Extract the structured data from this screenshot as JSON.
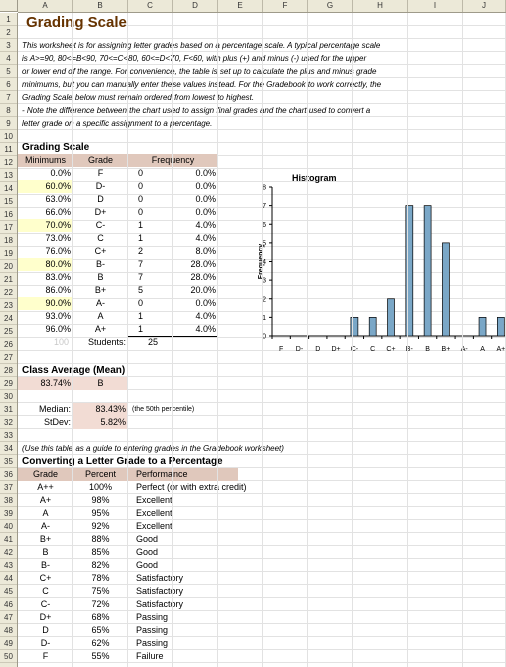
{
  "columns": [
    "A",
    "B",
    "C",
    "D",
    "E",
    "F",
    "G",
    "H",
    "I",
    "J"
  ],
  "rows": [
    1,
    2,
    3,
    4,
    5,
    6,
    7,
    8,
    9,
    10,
    11,
    12,
    13,
    14,
    15,
    16,
    17,
    18,
    19,
    20,
    21,
    22,
    23,
    24,
    25,
    26,
    27,
    28,
    29,
    30,
    31,
    32,
    33,
    34,
    35,
    36,
    37,
    38,
    39,
    40,
    41,
    42,
    43,
    44,
    45,
    46,
    47,
    48,
    49,
    50
  ],
  "title": "Grading Scale",
  "intro": [
    "This worksheet is for assigning letter grades based on a percentage scale. A typical percentage scale",
    "is A>=90, 80<=B<90, 70<=C<80, 60<=D<70, F<60, with plus (+) and minus (-) used for the upper",
    "or lower end of the range. For convenience, the table is set up to calculate the plus and minus grade",
    "minimums, but you can manually enter these values instead. For the Gradebook to work correctly, the",
    "Grading Scale below must remain ordered from lowest to highest.",
    " - Note the difference between the chart used to assign final grades and the chart used to convert a",
    "letter grade on a specific assignment to a percentage."
  ],
  "grading_scale": {
    "heading": "Grading Scale",
    "headers": {
      "minimums": "Minimums",
      "grade": "Grade",
      "frequency": "Frequency"
    },
    "rows": [
      {
        "min": "0.0%",
        "grade": "F",
        "count": "0",
        "pct": "0.0%",
        "highlight": false
      },
      {
        "min": "60.0%",
        "grade": "D-",
        "count": "0",
        "pct": "0.0%",
        "highlight": true
      },
      {
        "min": "63.0%",
        "grade": "D",
        "count": "0",
        "pct": "0.0%",
        "highlight": false
      },
      {
        "min": "66.0%",
        "grade": "D+",
        "count": "0",
        "pct": "0.0%",
        "highlight": false
      },
      {
        "min": "70.0%",
        "grade": "C-",
        "count": "1",
        "pct": "4.0%",
        "highlight": true
      },
      {
        "min": "73.0%",
        "grade": "C",
        "count": "1",
        "pct": "4.0%",
        "highlight": false
      },
      {
        "min": "76.0%",
        "grade": "C+",
        "count": "2",
        "pct": "8.0%",
        "highlight": false
      },
      {
        "min": "80.0%",
        "grade": "B-",
        "count": "7",
        "pct": "28.0%",
        "highlight": true
      },
      {
        "min": "83.0%",
        "grade": "B",
        "count": "7",
        "pct": "28.0%",
        "highlight": false
      },
      {
        "min": "86.0%",
        "grade": "B+",
        "count": "5",
        "pct": "20.0%",
        "highlight": false
      },
      {
        "min": "90.0%",
        "grade": "A-",
        "count": "0",
        "pct": "0.0%",
        "highlight": true
      },
      {
        "min": "93.0%",
        "grade": "A",
        "count": "1",
        "pct": "4.0%",
        "highlight": false
      },
      {
        "min": "96.0%",
        "grade": "A+",
        "count": "1",
        "pct": "4.0%",
        "highlight": false
      }
    ],
    "faded_value": "100",
    "students_label": "Students:",
    "students_count": "25"
  },
  "chart_data": {
    "type": "bar",
    "title": "Histogram",
    "xlabel": "",
    "ylabel": "Frequency",
    "categories": [
      "F",
      "D-",
      "D",
      "D+",
      "C-",
      "C",
      "C+",
      "B-",
      "B",
      "B+",
      "A-",
      "A",
      "A+"
    ],
    "values": [
      0,
      0,
      0,
      0,
      1,
      1,
      2,
      7,
      7,
      5,
      0,
      1,
      1
    ],
    "ylim": [
      0,
      8
    ],
    "yticks": [
      0,
      1,
      2,
      3,
      4,
      5,
      6,
      7,
      8
    ],
    "bar_color": "#7aa7c7",
    "grid": false,
    "legend": false
  },
  "class_average": {
    "heading": "Class Average (Mean)",
    "value": "83.74%",
    "grade": "B",
    "median_label": "Median:",
    "median_value": "83.43%",
    "median_note": "(the 50th percentile)",
    "stdev_label": "StDev:",
    "stdev_value": "5.82%"
  },
  "note": "(Use this table as a guide to entering grades in the Gradebook worksheet)",
  "conversion": {
    "heading": "Converting a Letter Grade to a Percentage",
    "headers": {
      "grade": "Grade",
      "percent": "Percent",
      "performance": "Performance"
    },
    "rows": [
      {
        "grade": "A++",
        "percent": "100%",
        "performance": "Perfect (or with extra credit)"
      },
      {
        "grade": "A+",
        "percent": "98%",
        "performance": "Excellent"
      },
      {
        "grade": "A",
        "percent": "95%",
        "performance": "Excellent"
      },
      {
        "grade": "A-",
        "percent": "92%",
        "performance": "Excellent"
      },
      {
        "grade": "B+",
        "percent": "88%",
        "performance": "Good"
      },
      {
        "grade": "B",
        "percent": "85%",
        "performance": "Good"
      },
      {
        "grade": "B-",
        "percent": "82%",
        "performance": "Good"
      },
      {
        "grade": "C+",
        "percent": "78%",
        "performance": "Satisfactory"
      },
      {
        "grade": "C",
        "percent": "75%",
        "performance": "Satisfactory"
      },
      {
        "grade": "C-",
        "percent": "72%",
        "performance": "Satisfactory"
      },
      {
        "grade": "D+",
        "percent": "68%",
        "performance": "Passing"
      },
      {
        "grade": "D",
        "percent": "65%",
        "performance": "Passing"
      },
      {
        "grade": "D-",
        "percent": "62%",
        "performance": "Passing"
      },
      {
        "grade": "F",
        "percent": "55%",
        "performance": "Failure"
      }
    ]
  },
  "colors": {
    "title": "#663300",
    "header_band": "#e0c8bc",
    "highlight": "#ffffcc",
    "stat_fill": "#f2dcd4"
  }
}
